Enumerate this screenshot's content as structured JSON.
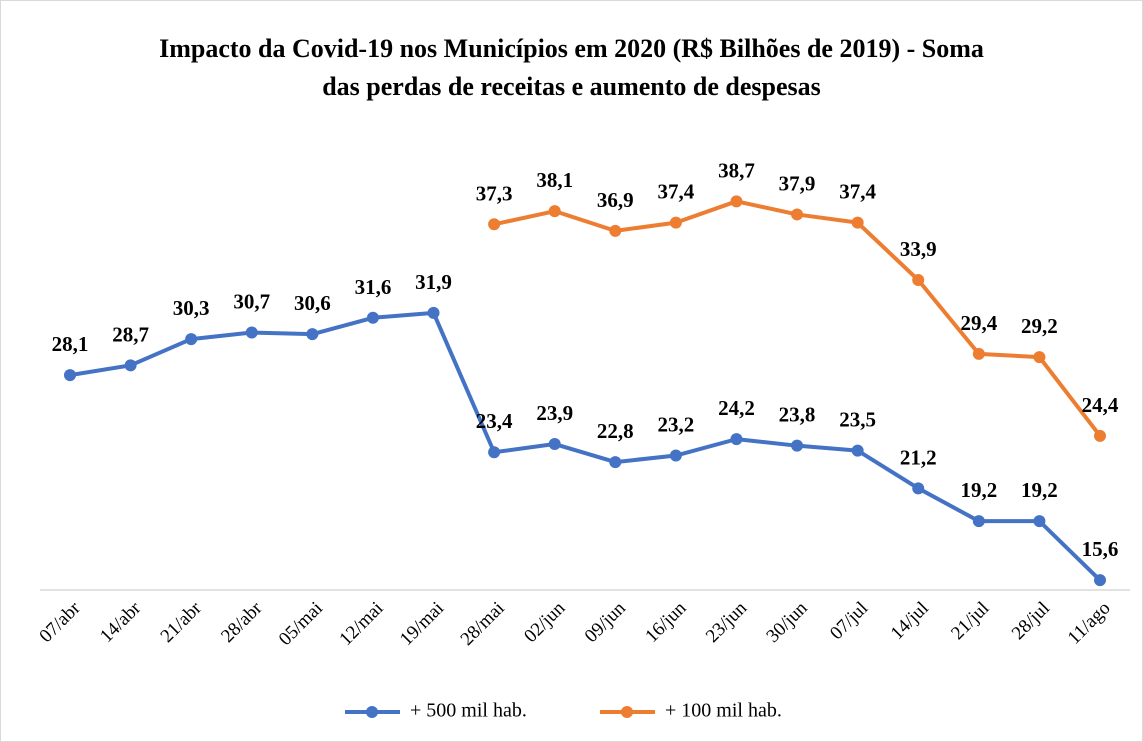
{
  "chart_data": {
    "type": "line",
    "title": "Impacto da Covid-19 nos Municípios em 2020 (R$ Bilhões de 2019) - Soma das perdas de receitas e aumento de despesas",
    "categories": [
      "07/abr",
      "14/abr",
      "21/abr",
      "28/abr",
      "05/mai",
      "12/mai",
      "19/mai",
      "28/mai",
      "02/jun",
      "09/jun",
      "16/jun",
      "23/jun",
      "30/jun",
      "07/jul",
      "14/jul",
      "21/jul",
      "28/jul",
      "11/ago"
    ],
    "ylim": [
      15,
      40
    ],
    "legend": "bottom",
    "series": [
      {
        "name": "+ 500 mil hab.",
        "color": "#4472c4",
        "values": [
          28.1,
          28.7,
          30.3,
          30.7,
          30.6,
          31.6,
          31.9,
          23.4,
          23.9,
          22.8,
          23.2,
          24.2,
          23.8,
          23.5,
          21.2,
          19.2,
          19.2,
          15.6
        ],
        "value_labels": [
          "28,1",
          "28,7",
          "30,3",
          "30,7",
          "30,6",
          "31,6",
          "31,9",
          "23,4",
          "23,9",
          "22,8",
          "23,2",
          "24,2",
          "23,8",
          "23,5",
          "21,2",
          "19,2",
          "19,2",
          "15,6"
        ]
      },
      {
        "name": "+ 100 mil hab.",
        "color": "#ed7d31",
        "values": [
          null,
          null,
          null,
          null,
          null,
          null,
          null,
          37.3,
          38.1,
          36.9,
          37.4,
          38.7,
          37.9,
          37.4,
          33.9,
          29.4,
          29.2,
          24.4
        ],
        "value_labels": [
          null,
          null,
          null,
          null,
          null,
          null,
          null,
          "37,3",
          "38,1",
          "36,9",
          "37,4",
          "38,7",
          "37,9",
          "37,4",
          "33,9",
          "29,4",
          "29,2",
          "24,4"
        ]
      }
    ]
  }
}
